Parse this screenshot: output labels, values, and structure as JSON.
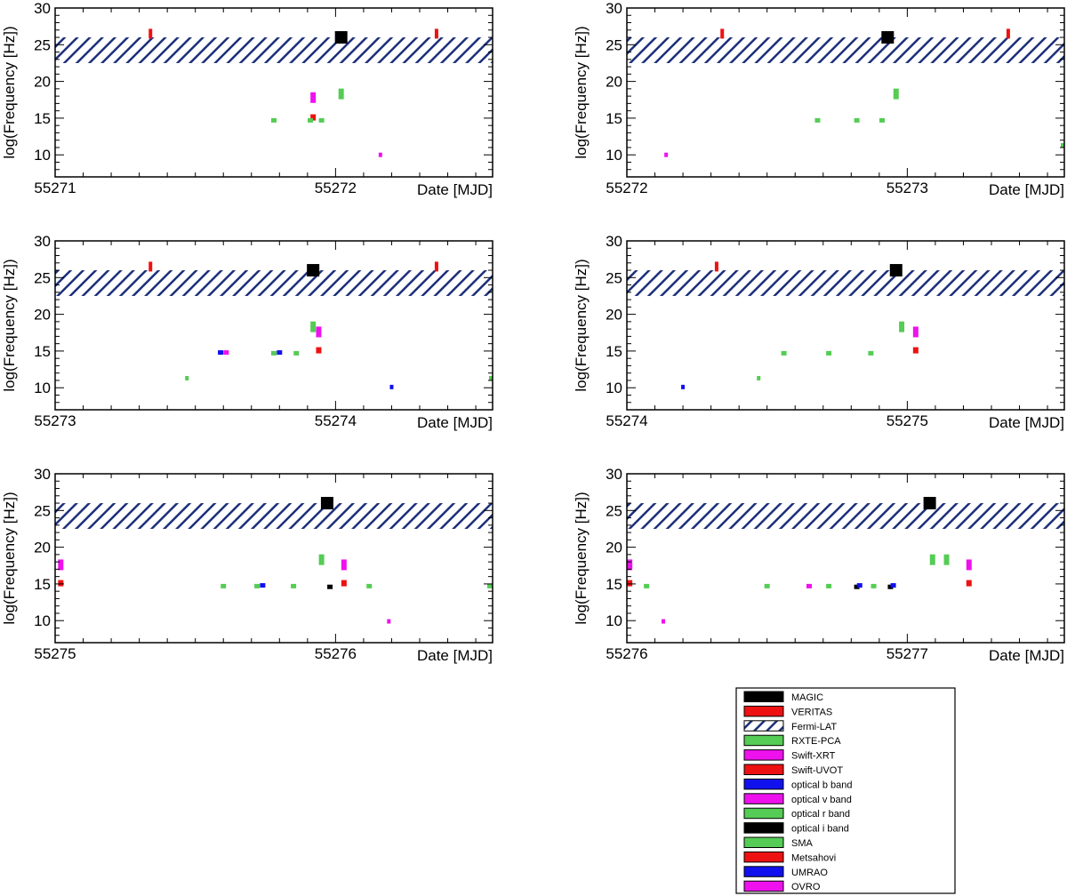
{
  "chart_data": {
    "type": "scatter",
    "ylabel": "log(Frequency [Hz])",
    "xlabel": "Date [MJD]",
    "ylim": [
      7,
      30
    ],
    "yticks": [
      10,
      15,
      20,
      25,
      30
    ],
    "fermi_band": [
      22.5,
      26
    ],
    "panels": [
      {
        "xstart": 55271,
        "xend": 55272.56,
        "labels": [
          "55271",
          "55272"
        ],
        "points": [
          {
            "inst": "VERITAS",
            "mjd": 55271.34,
            "f": 26.5
          },
          {
            "inst": "MAGIC",
            "mjd": 55272.02,
            "f": 26.0
          },
          {
            "inst": "VERITAS",
            "mjd": 55272.36,
            "f": 26.5
          },
          {
            "inst": "Swift-XRT",
            "mjd": 55271.92,
            "f": 17.8
          },
          {
            "inst": "RXTE-PCA",
            "mjd": 55272.02,
            "f": 18.3
          },
          {
            "inst": "Swift-UVOT",
            "mjd": 55271.92,
            "f": 15.1
          },
          {
            "inst": "optical r band",
            "mjd": 55271.78,
            "f": 14.7
          },
          {
            "inst": "optical r band",
            "mjd": 55271.91,
            "f": 14.7
          },
          {
            "inst": "optical r band",
            "mjd": 55271.95,
            "f": 14.7
          },
          {
            "inst": "OVRO",
            "mjd": 55272.16,
            "f": 10.0
          }
        ]
      },
      {
        "xstart": 55272,
        "xend": 55273.56,
        "labels": [
          "55272",
          "55273"
        ],
        "points": [
          {
            "inst": "VERITAS",
            "mjd": 55272.34,
            "f": 26.5
          },
          {
            "inst": "MAGIC",
            "mjd": 55272.93,
            "f": 26.0
          },
          {
            "inst": "VERITAS",
            "mjd": 55273.36,
            "f": 26.5
          },
          {
            "inst": "RXTE-PCA",
            "mjd": 55272.96,
            "f": 18.3
          },
          {
            "inst": "optical r band",
            "mjd": 55272.68,
            "f": 14.7
          },
          {
            "inst": "optical r band",
            "mjd": 55272.82,
            "f": 14.7
          },
          {
            "inst": "optical r band",
            "mjd": 55272.91,
            "f": 14.7
          },
          {
            "inst": "OVRO",
            "mjd": 55272.14,
            "f": 10.0
          },
          {
            "inst": "SMA",
            "mjd": 55273.56,
            "f": 11.3
          }
        ]
      },
      {
        "xstart": 55273,
        "xend": 55274.56,
        "labels": [
          "55273",
          "55274"
        ],
        "points": [
          {
            "inst": "VERITAS",
            "mjd": 55273.34,
            "f": 26.5
          },
          {
            "inst": "MAGIC",
            "mjd": 55273.92,
            "f": 26.0
          },
          {
            "inst": "VERITAS",
            "mjd": 55274.36,
            "f": 26.5
          },
          {
            "inst": "RXTE-PCA",
            "mjd": 55273.92,
            "f": 18.3
          },
          {
            "inst": "Swift-XRT",
            "mjd": 55273.94,
            "f": 17.6
          },
          {
            "inst": "Swift-UVOT",
            "mjd": 55273.94,
            "f": 15.1
          },
          {
            "inst": "optical b band",
            "mjd": 55273.59,
            "f": 14.8
          },
          {
            "inst": "optical v band",
            "mjd": 55273.61,
            "f": 14.8
          },
          {
            "inst": "optical r band",
            "mjd": 55273.78,
            "f": 14.7
          },
          {
            "inst": "optical b band",
            "mjd": 55273.8,
            "f": 14.8
          },
          {
            "inst": "optical r band",
            "mjd": 55273.86,
            "f": 14.7
          },
          {
            "inst": "SMA",
            "mjd": 55273.47,
            "f": 11.3
          },
          {
            "inst": "UMRAO",
            "mjd": 55274.2,
            "f": 10.1
          },
          {
            "inst": "SMA",
            "mjd": 55274.56,
            "f": 11.3
          }
        ]
      },
      {
        "xstart": 55274,
        "xend": 55275.56,
        "labels": [
          "55274",
          "55275"
        ],
        "points": [
          {
            "inst": "VERITAS",
            "mjd": 55274.32,
            "f": 26.5
          },
          {
            "inst": "MAGIC",
            "mjd": 55274.96,
            "f": 26.0
          },
          {
            "inst": "RXTE-PCA",
            "mjd": 55274.98,
            "f": 18.3
          },
          {
            "inst": "Swift-XRT",
            "mjd": 55275.03,
            "f": 17.6
          },
          {
            "inst": "Swift-UVOT",
            "mjd": 55275.03,
            "f": 15.1
          },
          {
            "inst": "optical r band",
            "mjd": 55274.56,
            "f": 14.7
          },
          {
            "inst": "optical r band",
            "mjd": 55274.72,
            "f": 14.7
          },
          {
            "inst": "optical r band",
            "mjd": 55274.87,
            "f": 14.7
          },
          {
            "inst": "SMA",
            "mjd": 55274.47,
            "f": 11.3
          },
          {
            "inst": "UMRAO",
            "mjd": 55274.2,
            "f": 10.1
          }
        ]
      },
      {
        "xstart": 55275,
        "xend": 55276.56,
        "labels": [
          "55275",
          "55276"
        ],
        "points": [
          {
            "inst": "Swift-XRT",
            "mjd": 55275.02,
            "f": 17.6
          },
          {
            "inst": "MAGIC",
            "mjd": 55275.97,
            "f": 26.0
          },
          {
            "inst": "RXTE-PCA",
            "mjd": 55275.95,
            "f": 18.3
          },
          {
            "inst": "Swift-XRT",
            "mjd": 55276.03,
            "f": 17.6
          },
          {
            "inst": "Swift-UVOT",
            "mjd": 55275.02,
            "f": 15.1
          },
          {
            "inst": "Swift-UVOT",
            "mjd": 55276.03,
            "f": 15.1
          },
          {
            "inst": "optical r band",
            "mjd": 55275.6,
            "f": 14.7
          },
          {
            "inst": "optical r band",
            "mjd": 55275.72,
            "f": 14.7
          },
          {
            "inst": "optical b band",
            "mjd": 55275.74,
            "f": 14.8
          },
          {
            "inst": "optical r band",
            "mjd": 55275.85,
            "f": 14.7
          },
          {
            "inst": "optical i band",
            "mjd": 55275.98,
            "f": 14.6
          },
          {
            "inst": "optical r band",
            "mjd": 55276.12,
            "f": 14.7
          },
          {
            "inst": "optical r band",
            "mjd": 55276.56,
            "f": 14.7
          },
          {
            "inst": "OVRO",
            "mjd": 55276.19,
            "f": 9.9
          }
        ]
      },
      {
        "xstart": 55276,
        "xend": 55277.56,
        "labels": [
          "55276",
          "55277"
        ],
        "points": [
          {
            "inst": "Swift-XRT",
            "mjd": 55276.01,
            "f": 17.6
          },
          {
            "inst": "MAGIC",
            "mjd": 55277.08,
            "f": 26.0
          },
          {
            "inst": "RXTE-PCA",
            "mjd": 55277.09,
            "f": 18.3
          },
          {
            "inst": "RXTE-PCA",
            "mjd": 55277.14,
            "f": 18.3
          },
          {
            "inst": "Swift-XRT",
            "mjd": 55277.22,
            "f": 17.6
          },
          {
            "inst": "Swift-UVOT",
            "mjd": 55276.01,
            "f": 15.1
          },
          {
            "inst": "Swift-UVOT",
            "mjd": 55277.22,
            "f": 15.1
          },
          {
            "inst": "optical r band",
            "mjd": 55276.07,
            "f": 14.7
          },
          {
            "inst": "optical r band",
            "mjd": 55276.5,
            "f": 14.7
          },
          {
            "inst": "optical v band",
            "mjd": 55276.65,
            "f": 14.7
          },
          {
            "inst": "optical r band",
            "mjd": 55276.72,
            "f": 14.7
          },
          {
            "inst": "optical i band",
            "mjd": 55276.82,
            "f": 14.6
          },
          {
            "inst": "optical b band",
            "mjd": 55276.83,
            "f": 14.8
          },
          {
            "inst": "optical r band",
            "mjd": 55276.88,
            "f": 14.7
          },
          {
            "inst": "optical i band",
            "mjd": 55276.94,
            "f": 14.6
          },
          {
            "inst": "optical b band",
            "mjd": 55276.95,
            "f": 14.8
          },
          {
            "inst": "OVRO",
            "mjd": 55276.13,
            "f": 9.9
          }
        ]
      }
    ],
    "legend": [
      {
        "name": "MAGIC",
        "color": "#000000"
      },
      {
        "name": "VERITAS",
        "color": "#ee1111"
      },
      {
        "name": "Fermi-LAT",
        "color": "#1c2f7a",
        "hatched": true
      },
      {
        "name": "RXTE-PCA",
        "color": "#55cc55"
      },
      {
        "name": "Swift-XRT",
        "color": "#ee11ee"
      },
      {
        "name": "Swift-UVOT",
        "color": "#ee1111"
      },
      {
        "name": "optical b band",
        "color": "#1111ee"
      },
      {
        "name": "optical v band",
        "color": "#ee11ee"
      },
      {
        "name": "optical r band",
        "color": "#55cc55"
      },
      {
        "name": "optical i band",
        "color": "#000000"
      },
      {
        "name": "SMA",
        "color": "#55cc55"
      },
      {
        "name": "Metsahovi",
        "color": "#ee1111"
      },
      {
        "name": "UMRAO",
        "color": "#1111ee"
      },
      {
        "name": "OVRO",
        "color": "#ee11ee"
      }
    ]
  }
}
